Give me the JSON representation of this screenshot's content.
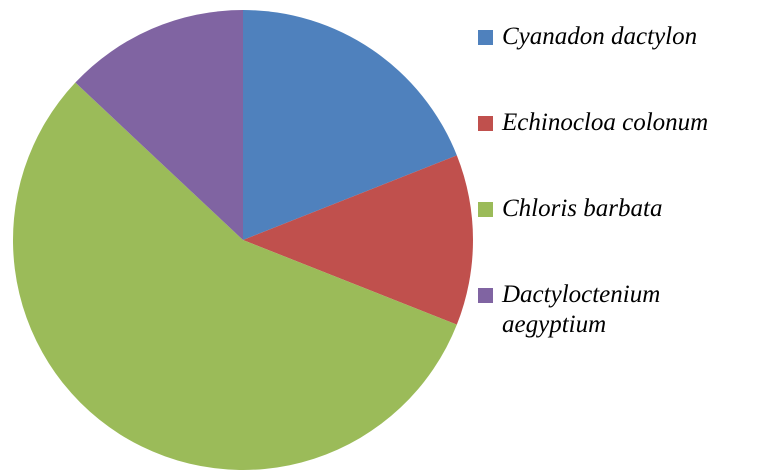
{
  "chart_data": {
    "type": "pie",
    "categories": [
      "Cyanadon dactylon",
      "Echinocloa colonum",
      "Chloris barbata",
      "Dactyloctenium aegyptium"
    ],
    "values": [
      19,
      12,
      56,
      13
    ],
    "colors": [
      "#4f81bd",
      "#c0504d",
      "#9bbb59",
      "#8064a2"
    ],
    "legend": "right"
  }
}
